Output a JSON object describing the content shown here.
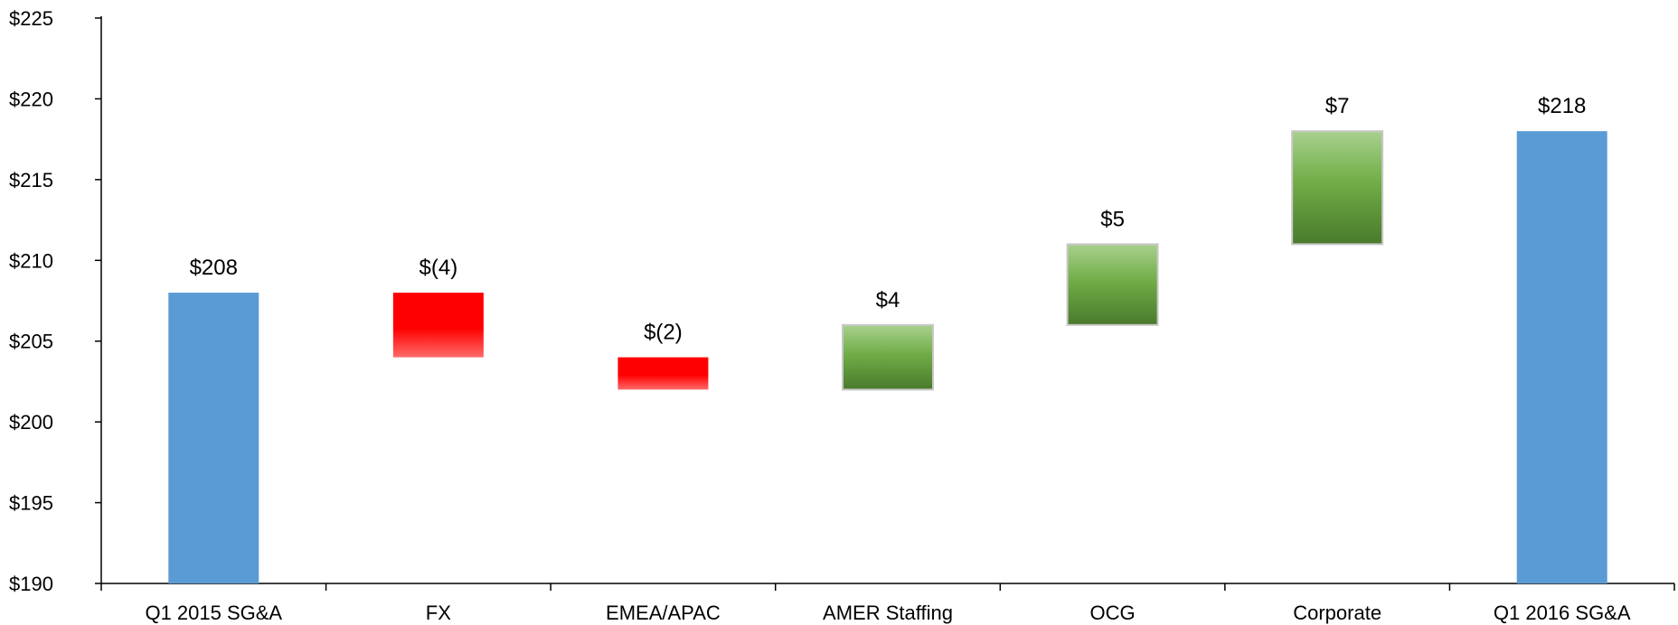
{
  "chart_data": {
    "type": "bar",
    "subtype": "waterfall",
    "categories": [
      "Q1 2015 SG&A",
      "FX",
      "EMEA/APAC",
      "AMER Staffing",
      "OCG",
      "Corporate",
      "Q1 2016 SG&A"
    ],
    "bars": [
      {
        "category": "Q1 2015 SG&A",
        "kind": "total",
        "start": 190,
        "end": 208,
        "label": "$208"
      },
      {
        "category": "FX",
        "kind": "decrease",
        "start": 208,
        "end": 204,
        "label": "$(4)"
      },
      {
        "category": "EMEA/APAC",
        "kind": "decrease",
        "start": 204,
        "end": 202,
        "label": "$(2)"
      },
      {
        "category": "AMER Staffing",
        "kind": "increase",
        "start": 202,
        "end": 206,
        "label": "$4"
      },
      {
        "category": "OCG",
        "kind": "increase",
        "start": 206,
        "end": 211,
        "label": "$5"
      },
      {
        "category": "Corporate",
        "kind": "increase",
        "start": 211,
        "end": 218,
        "label": "$7"
      },
      {
        "category": "Q1 2016 SG&A",
        "kind": "total",
        "start": 190,
        "end": 218,
        "label": "$218"
      }
    ],
    "y_ticks": [
      190,
      195,
      200,
      205,
      210,
      215,
      220,
      225
    ],
    "y_tick_labels": [
      "$190",
      "$195",
      "$200",
      "$205",
      "$210",
      "$215",
      "$220",
      "$225"
    ],
    "ylim": [
      190,
      225
    ],
    "title": "",
    "xlabel": "",
    "ylabel": "",
    "grid": false,
    "legend": "none",
    "colors": {
      "total": "#5b9bd5",
      "decrease": "#ff0000",
      "increase_light": "#a9d18e",
      "increase_mid": "#70ad47",
      "increase_dark": "#4a7a2c",
      "axis": "#000000"
    }
  }
}
